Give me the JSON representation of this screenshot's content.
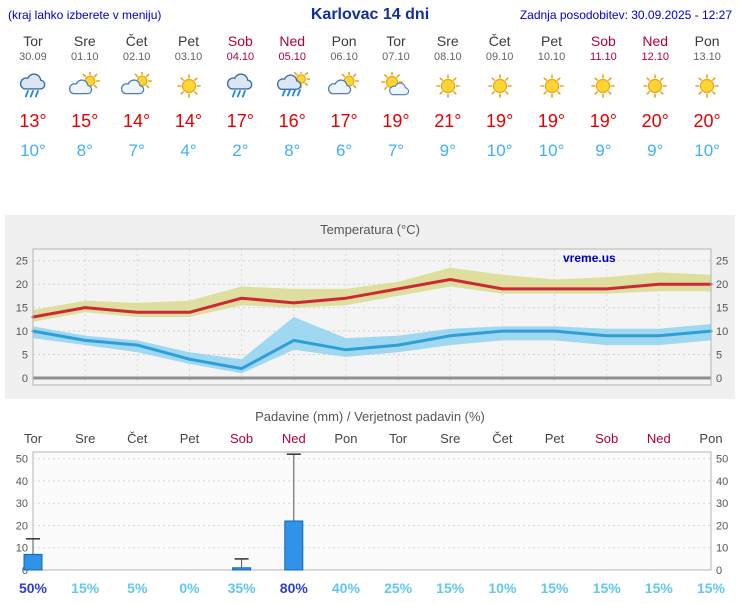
{
  "header": {
    "left_note": "(kraj lahko izberete v meniju)",
    "title": "Karlovac 14 dni",
    "updated": "Zadnja posodobitev: 30.09.2025 - 12:27"
  },
  "days": [
    {
      "name": "Tor",
      "date": "30.09",
      "weekend": false,
      "icon": "rain",
      "high": "13°",
      "low": "10°"
    },
    {
      "name": "Sre",
      "date": "01.10",
      "weekend": false,
      "icon": "partly",
      "high": "15°",
      "low": "8°"
    },
    {
      "name": "Čet",
      "date": "02.10",
      "weekend": false,
      "icon": "partly",
      "high": "14°",
      "low": "7°"
    },
    {
      "name": "Pet",
      "date": "03.10",
      "weekend": false,
      "icon": "sun",
      "high": "14°",
      "low": "4°"
    },
    {
      "name": "Sob",
      "date": "04.10",
      "weekend": true,
      "icon": "rain",
      "high": "17°",
      "low": "2°"
    },
    {
      "name": "Ned",
      "date": "05.10",
      "weekend": true,
      "icon": "rain-sun",
      "high": "16°",
      "low": "8°"
    },
    {
      "name": "Pon",
      "date": "06.10",
      "weekend": false,
      "icon": "partly",
      "high": "17°",
      "low": "6°"
    },
    {
      "name": "Tor",
      "date": "07.10",
      "weekend": false,
      "icon": "sun-cloud",
      "high": "19°",
      "low": "7°"
    },
    {
      "name": "Sre",
      "date": "08.10",
      "weekend": false,
      "icon": "sun",
      "high": "21°",
      "low": "9°"
    },
    {
      "name": "Čet",
      "date": "09.10",
      "weekend": false,
      "icon": "sun",
      "high": "19°",
      "low": "10°"
    },
    {
      "name": "Pet",
      "date": "10.10",
      "weekend": false,
      "icon": "sun",
      "high": "19°",
      "low": "10°"
    },
    {
      "name": "Sob",
      "date": "11.10",
      "weekend": true,
      "icon": "sun",
      "high": "19°",
      "low": "9°"
    },
    {
      "name": "Ned",
      "date": "12.10",
      "weekend": true,
      "icon": "sun",
      "high": "20°",
      "low": "9°"
    },
    {
      "name": "Pon",
      "date": "13.10",
      "weekend": false,
      "icon": "sun",
      "high": "20°",
      "low": "10°"
    }
  ],
  "chart_data": [
    {
      "type": "line",
      "title": "Temperatura (°C)",
      "watermark": "vreme.us",
      "categories": [
        "Tor 30.09",
        "Sre 01.10",
        "Čet 02.10",
        "Pet 03.10",
        "Sob 04.10",
        "Ned 05.10",
        "Pon 06.10",
        "Tor 07.10",
        "Sre 08.10",
        "Čet 09.10",
        "Pet 10.10",
        "Sob 11.10",
        "Ned 12.10",
        "Pon 13.10"
      ],
      "ylim": [
        -1.5,
        27.5
      ],
      "yticks": [
        0,
        5,
        10,
        15,
        20,
        25
      ],
      "grid": true,
      "series": [
        {
          "name": "max",
          "values": [
            13,
            15,
            14,
            14,
            17,
            16,
            17,
            19,
            21,
            19,
            19,
            19,
            20,
            20
          ]
        },
        {
          "name": "max_range_upper",
          "values": [
            14.5,
            16.5,
            16,
            16.5,
            19.5,
            19,
            19,
            20.5,
            23.5,
            22,
            21,
            21.5,
            22.5,
            22
          ]
        },
        {
          "name": "max_range_lower",
          "values": [
            12,
            14,
            13,
            13,
            15.5,
            15,
            15.5,
            17.5,
            19.5,
            18,
            18,
            18,
            18.5,
            18.5
          ]
        },
        {
          "name": "min",
          "values": [
            10,
            8,
            7,
            4,
            2,
            8,
            6,
            7,
            9,
            10,
            10,
            9,
            9,
            10
          ]
        },
        {
          "name": "min_range_upper",
          "values": [
            11,
            9,
            8,
            5.5,
            4,
            13,
            8.5,
            9,
            10.5,
            11,
            11,
            10.5,
            10.5,
            11.5
          ]
        },
        {
          "name": "min_range_lower",
          "values": [
            8.5,
            7,
            5.5,
            3,
            1,
            6,
            4.5,
            5.5,
            7,
            8,
            8,
            7,
            7,
            8
          ]
        }
      ],
      "colors": {
        "max_line": "#cc2936",
        "max_band": "#dcdc96",
        "min_line": "#2d9fd8",
        "min_band": "#8fd2ef"
      }
    },
    {
      "type": "bar",
      "title": "Padavine (mm) / Verjetnost padavin (%)",
      "categories": [
        "Tor",
        "Sre",
        "Čet",
        "Pet",
        "Sob",
        "Ned",
        "Pon",
        "Tor",
        "Sre",
        "Čet",
        "Pet",
        "Sob",
        "Ned",
        "Pon"
      ],
      "ylim": [
        0,
        53
      ],
      "yticks": [
        0,
        10,
        20,
        30,
        40,
        50
      ],
      "values": [
        7,
        0,
        0,
        0,
        1,
        22,
        0,
        0,
        0,
        0,
        0,
        0,
        0,
        0
      ],
      "whiskers": [
        14,
        0,
        0,
        0,
        5,
        52,
        0,
        0,
        0,
        0,
        0,
        0,
        0,
        0
      ],
      "probabilities": [
        "50%",
        "15%",
        "5%",
        "0%",
        "35%",
        "80%",
        "40%",
        "25%",
        "15%",
        "10%",
        "15%",
        "15%",
        "15%",
        "15%"
      ],
      "prob_strong": [
        true,
        false,
        false,
        false,
        false,
        true,
        false,
        false,
        false,
        false,
        false,
        false,
        false,
        false
      ],
      "colors": {
        "bar": "#3093e8",
        "bar_border": "#1464b4",
        "prob": "#63c8f0",
        "prob_strong": "#2b3fd6"
      }
    }
  ]
}
